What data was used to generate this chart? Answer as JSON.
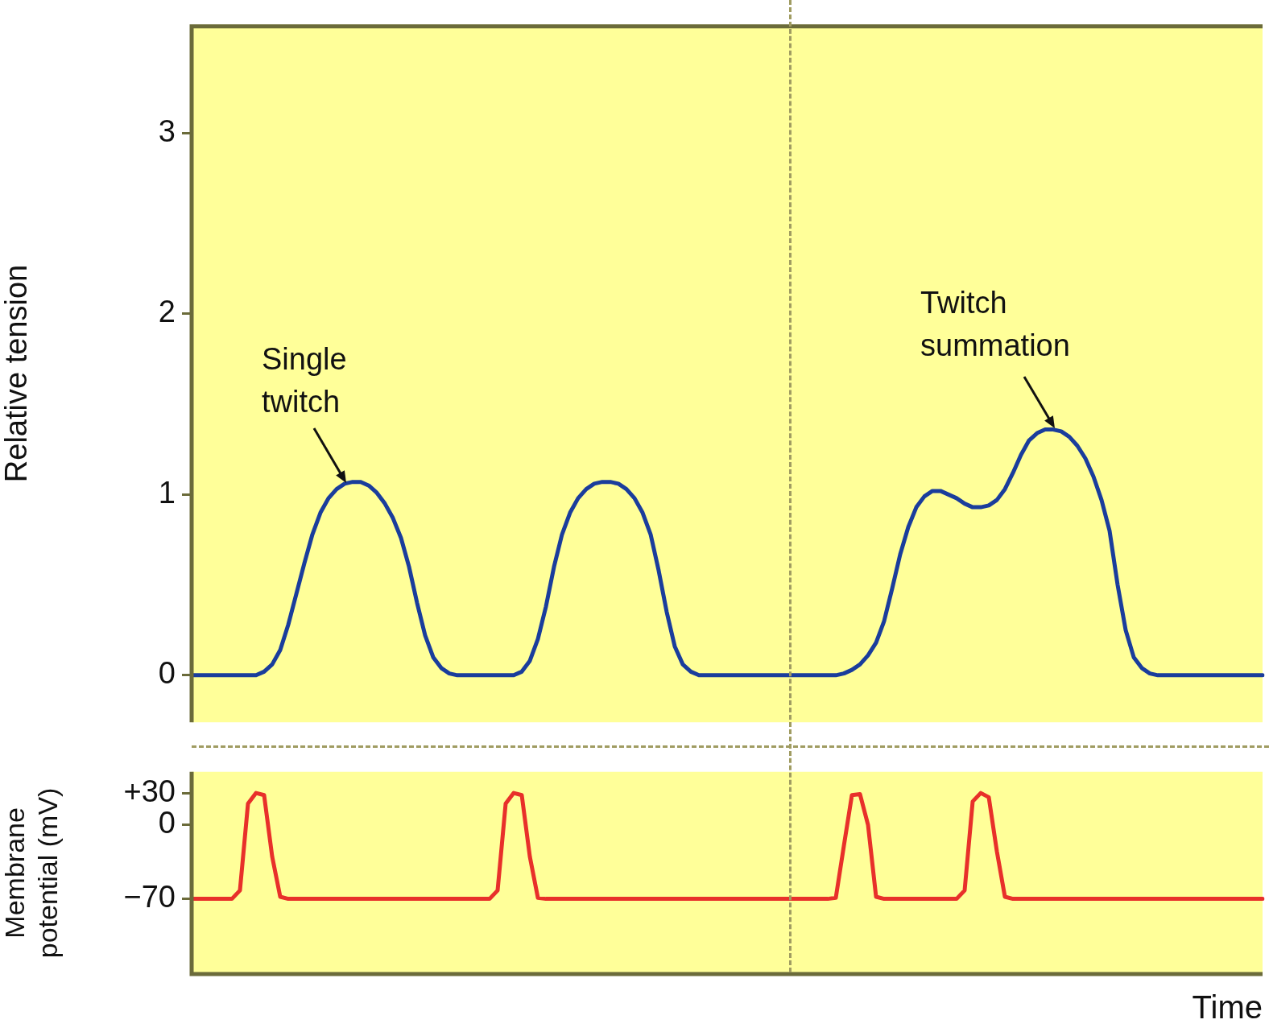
{
  "chart_data": [
    {
      "type": "line",
      "ylabel": "Relative tension",
      "color": "#1a3d9c",
      "ylim": [
        -0.26,
        3.6
      ],
      "yticks": [
        0,
        1,
        2,
        3
      ],
      "grid": false,
      "legend": false,
      "tick_labels": "y",
      "annotations": [
        "Single twitch",
        "Twitch summation"
      ],
      "categories": [
        null,
        null,
        null,
        null,
        null,
        null,
        null,
        null,
        null,
        null,
        null,
        null,
        null,
        null,
        null,
        null,
        null,
        null,
        null,
        null,
        null,
        null,
        null,
        null,
        null,
        null,
        null,
        null,
        null,
        null,
        null,
        null,
        null,
        null,
        null,
        null,
        null,
        null,
        null,
        null,
        null,
        null,
        null,
        null,
        null,
        null,
        null,
        null,
        null,
        null,
        null,
        null,
        null,
        null,
        null,
        null,
        null,
        null,
        null,
        null,
        null,
        null,
        null,
        null,
        null,
        null,
        null,
        null,
        null,
        null,
        null,
        null,
        null,
        null,
        null,
        null,
        null,
        null,
        null,
        null,
        null,
        null,
        null,
        null,
        null,
        null,
        null,
        null,
        null,
        null,
        null,
        null,
        null,
        null,
        null,
        null,
        null,
        null,
        null,
        null,
        null,
        null,
        null,
        null,
        null,
        null,
        null,
        null,
        null,
        null,
        null,
        null,
        null,
        null,
        null,
        null,
        null,
        null,
        null,
        null,
        null,
        null,
        null,
        null,
        null,
        null,
        null,
        null,
        null,
        null,
        null,
        null,
        null,
        null
      ],
      "values": [
        0,
        0,
        0,
        0,
        0,
        0,
        0,
        0,
        0,
        0.02,
        0.06,
        0.14,
        0.28,
        0.45,
        0.62,
        0.78,
        0.9,
        0.98,
        1.03,
        1.06,
        1.07,
        1.07,
        1.05,
        1.01,
        0.95,
        0.87,
        0.76,
        0.6,
        0.4,
        0.22,
        0.1,
        0.04,
        0.01,
        0,
        0,
        0,
        0,
        0,
        0,
        0,
        0,
        0.02,
        0.08,
        0.2,
        0.38,
        0.6,
        0.78,
        0.9,
        0.98,
        1.03,
        1.06,
        1.07,
        1.07,
        1.06,
        1.03,
        0.98,
        0.9,
        0.78,
        0.58,
        0.35,
        0.16,
        0.06,
        0.02,
        0,
        0,
        0,
        0,
        0,
        0,
        0,
        0,
        0,
        0,
        0,
        0,
        0,
        0,
        0,
        0,
        0,
        0,
        0.01,
        0.03,
        0.06,
        0.11,
        0.18,
        0.3,
        0.48,
        0.67,
        0.82,
        0.93,
        0.99,
        1.02,
        1.02,
        1,
        0.98,
        0.95,
        0.93,
        0.93,
        0.94,
        0.97,
        1.03,
        1.12,
        1.22,
        1.3,
        1.34,
        1.36,
        1.36,
        1.35,
        1.32,
        1.27,
        1.2,
        1.1,
        0.97,
        0.8,
        0.5,
        0.25,
        0.1,
        0.04,
        0.01,
        0,
        0,
        0,
        0,
        0,
        0,
        0,
        0,
        0,
        0,
        0,
        0,
        0,
        0
      ]
    },
    {
      "type": "line",
      "ylabel": "Membrane potential (mV)",
      "xlabel": "Time",
      "color": "#e8302a",
      "ylim": [
        -141,
        50
      ],
      "yticks": [
        {
          "value": 30,
          "label": "+30"
        },
        0,
        {
          "value": -70,
          "label": "−70"
        }
      ],
      "grid": false,
      "legend": false,
      "tick_labels": "y",
      "categories": [
        null,
        null,
        null,
        null,
        null,
        null,
        null,
        null,
        null,
        null,
        null,
        null,
        null,
        null,
        null,
        null,
        null,
        null,
        null,
        null,
        null,
        null,
        null,
        null,
        null,
        null,
        null,
        null,
        null,
        null,
        null,
        null,
        null,
        null,
        null,
        null,
        null,
        null,
        null,
        null,
        null,
        null,
        null,
        null,
        null,
        null,
        null,
        null,
        null,
        null,
        null,
        null,
        null,
        null,
        null,
        null,
        null,
        null,
        null,
        null,
        null,
        null,
        null,
        null,
        null,
        null,
        null,
        null,
        null,
        null,
        null,
        null,
        null,
        null,
        null,
        null,
        null,
        null,
        null,
        null,
        null,
        null,
        null,
        null,
        null,
        null,
        null,
        null,
        null,
        null,
        null,
        null,
        null,
        null,
        null,
        null,
        null,
        null,
        null,
        null,
        null,
        null,
        null,
        null,
        null,
        null,
        null,
        null,
        null,
        null,
        null,
        null,
        null,
        null,
        null,
        null,
        null,
        null,
        null,
        null,
        null,
        null,
        null,
        null,
        null,
        null,
        null,
        null,
        null,
        null,
        null,
        null,
        null,
        null
      ],
      "values": [
        -70,
        -70,
        -70,
        -70,
        -70,
        -70,
        -62,
        20,
        30,
        28,
        -30,
        -68,
        -70,
        -70,
        -70,
        -70,
        -70,
        -70,
        -70,
        -70,
        -70,
        -70,
        -70,
        -70,
        -70,
        -70,
        -70,
        -70,
        -70,
        -70,
        -70,
        -70,
        -70,
        -70,
        -70,
        -70,
        -70,
        -70,
        -62,
        20,
        30,
        28,
        -30,
        -69,
        -70,
        -70,
        -70,
        -70,
        -70,
        -70,
        -70,
        -70,
        -70,
        -70,
        -70,
        -70,
        -70,
        -70,
        -70,
        -70,
        -70,
        -70,
        -70,
        -70,
        -70,
        -70,
        -70,
        -70,
        -70,
        -70,
        -70,
        -70,
        -70,
        -70,
        -70,
        -70,
        -70,
        -70,
        -70,
        -70,
        -69,
        -20,
        28,
        29,
        0,
        -68,
        -70,
        -70,
        -70,
        -70,
        -70,
        -70,
        -70,
        -70,
        -70,
        -70,
        -62,
        22,
        30,
        26,
        -25,
        -68,
        -70,
        -70,
        -70,
        -70,
        -70,
        -70,
        -70,
        -70,
        -70,
        -70,
        -70,
        -70,
        -70,
        -70,
        -70,
        -70,
        -70,
        -70,
        -70,
        -70,
        -70,
        -70,
        -70,
        -70,
        -70,
        -70,
        -70,
        -70,
        -70,
        -70,
        -70,
        -70
      ]
    }
  ]
}
